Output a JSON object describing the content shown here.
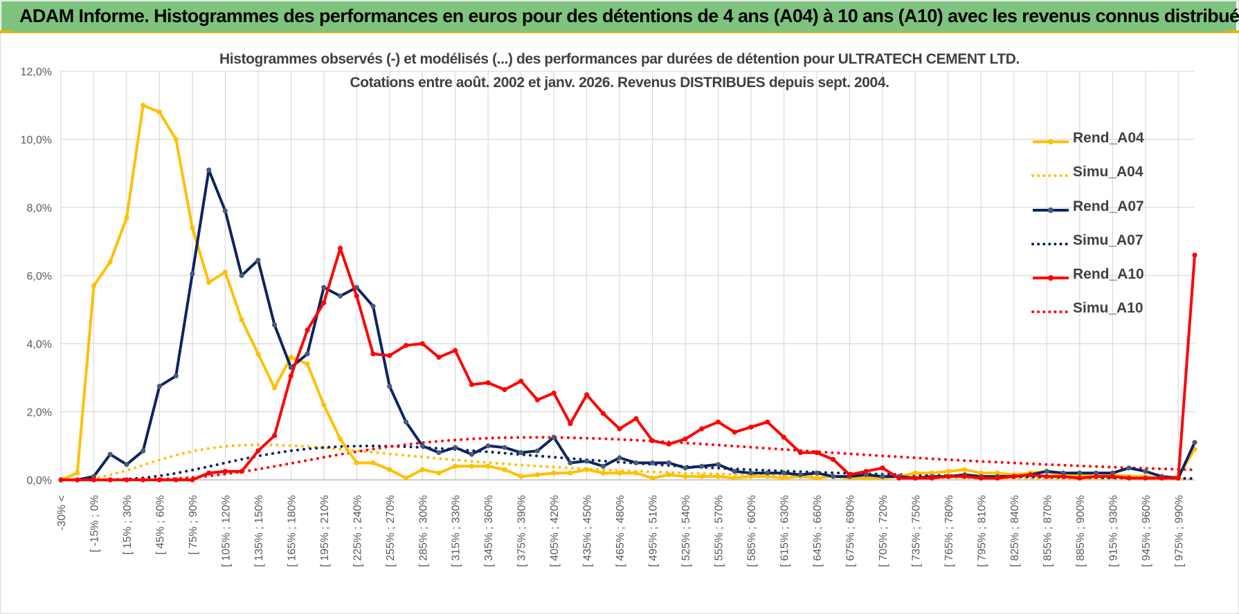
{
  "banner": {
    "title": "ADAM Informe. Histogrammes des performances en euros pour des détentions de 4 ans (A04) à 10 ans (A10) avec les revenus connus distribués"
  },
  "chart_data": {
    "type": "line",
    "title_line1": "Histogrammes observés (-) et modélisés (...) des performances par durées de détention pour ULTRATECH CEMENT LTD.",
    "title_line2": "Cotations entre août. 2002 et janv. 2026. Revenus DISTRIBUES depuis sept. 2004.",
    "ylim": [
      0,
      12
    ],
    "yticks": [
      "0,0%",
      "2,0%",
      "4,0%",
      "6,0%",
      "8,0%",
      "10,0%",
      "12,0%"
    ],
    "tick_labels": [
      "-30% <",
      "[ -15% ; 0%",
      "[ 15% ; 30%",
      "[ 45% ; 60%",
      "[ 75% ; 90%",
      "[ 105% ; 120%",
      "[ 135% ; 150%",
      "[ 165% ; 180%",
      "[ 195% ; 210%",
      "[ 225% ; 240%",
      "[ 255% ; 270%",
      "[ 285% ; 300%",
      "[ 315% ; 330%",
      "[ 345% ; 360%",
      "[ 375% ; 390%",
      "[ 405% ; 420%",
      "[ 435% ; 450%",
      "[ 465% ; 480%",
      "[ 495% ; 510%",
      "[ 525% ; 540%",
      "[ 555% ; 570%",
      "[ 585% ; 600%",
      "[ 615% ; 630%",
      "[ 645% ; 660%",
      "[ 675% ; 690%",
      "[ 705% ; 720%",
      "[ 735% ; 750%",
      "[ 765% ; 780%",
      "[ 795% ; 810%",
      "[ 825% ; 840%",
      "[ 855% ; 870%",
      "[ 885% ; 900%",
      "[ 915% ; 930%",
      "[ 945% ; 960%",
      "[ 975% ; 990%"
    ],
    "n_points": 70,
    "series": [
      {
        "name": "Rend_A04",
        "style": "solid",
        "color": "#FFC000",
        "values": [
          0,
          0.2,
          5.7,
          6.4,
          7.7,
          11.0,
          10.8,
          10.0,
          7.4,
          5.8,
          6.1,
          4.7,
          3.7,
          2.7,
          3.6,
          3.4,
          2.2,
          1.2,
          0.5,
          0.5,
          0.3,
          0.05,
          0.3,
          0.2,
          0.4,
          0.4,
          0.4,
          0.3,
          0.1,
          0.15,
          0.2,
          0.2,
          0.3,
          0.2,
          0.2,
          0.2,
          0.05,
          0.15,
          0.1,
          0.1,
          0.1,
          0.05,
          0.1,
          0.1,
          0.05,
          0.1,
          0.05,
          0.1,
          0.05,
          0.05,
          0.05,
          0.1,
          0.2,
          0.2,
          0.25,
          0.3,
          0.2,
          0.2,
          0.15,
          0.2,
          0.25,
          0.1,
          0.15,
          0.1,
          0.15,
          0.1,
          0.1,
          0.05,
          0.1,
          0.9
        ]
      },
      {
        "name": "Simu_A04",
        "style": "dotted",
        "color": "#FFC000",
        "dist": {
          "mu": 5.0,
          "sigma": 0.6,
          "scale": 24.5
        }
      },
      {
        "name": "Rend_A07",
        "style": "solid",
        "color": "#0C2461",
        "values": [
          0,
          0,
          0.1,
          0.75,
          0.45,
          0.85,
          2.75,
          3.05,
          6.05,
          9.1,
          7.9,
          6.0,
          6.45,
          4.55,
          3.3,
          3.7,
          5.65,
          5.4,
          5.65,
          5.1,
          2.75,
          1.7,
          1.0,
          0.8,
          0.95,
          0.75,
          1.0,
          0.95,
          0.8,
          0.85,
          1.25,
          0.5,
          0.55,
          0.4,
          0.65,
          0.5,
          0.5,
          0.5,
          0.35,
          0.4,
          0.45,
          0.25,
          0.2,
          0.2,
          0.2,
          0.15,
          0.2,
          0.1,
          0.1,
          0.15,
          0.1,
          0.1,
          0.05,
          0.1,
          0.1,
          0.15,
          0.1,
          0.1,
          0.1,
          0.15,
          0.25,
          0.2,
          0.2,
          0.2,
          0.2,
          0.35,
          0.25,
          0.1,
          0.05,
          1.1
        ]
      },
      {
        "name": "Simu_A07",
        "style": "dotted",
        "color": "#0C2461",
        "dist": {
          "mu": 5.5,
          "sigma": 0.5,
          "scale": 28.0
        }
      },
      {
        "name": "Rend_A10",
        "style": "solid",
        "color": "#FF0000",
        "values": [
          0,
          0,
          0,
          0,
          0,
          0,
          0,
          0,
          0,
          0.2,
          0.25,
          0.25,
          0.85,
          1.3,
          3.05,
          4.4,
          5.2,
          6.8,
          5.4,
          3.7,
          3.65,
          3.95,
          4.0,
          3.6,
          3.8,
          2.8,
          2.85,
          2.65,
          2.9,
          2.35,
          2.55,
          1.65,
          2.5,
          1.95,
          1.5,
          1.8,
          1.15,
          1.05,
          1.2,
          1.5,
          1.7,
          1.4,
          1.55,
          1.7,
          1.25,
          0.8,
          0.8,
          0.6,
          0.15,
          0.25,
          0.35,
          0.05,
          0.05,
          0.05,
          0.1,
          0.1,
          0.05,
          0.05,
          0.1,
          0.15,
          0.1,
          0.1,
          0.05,
          0.1,
          0.1,
          0.05,
          0.05,
          0.05,
          0.05,
          6.6
        ]
      },
      {
        "name": "Simu_A10",
        "style": "dotted",
        "color": "#FF0000",
        "dist": {
          "mu": 6.2,
          "sigma": 0.5,
          "scale": 53.0
        }
      }
    ]
  }
}
